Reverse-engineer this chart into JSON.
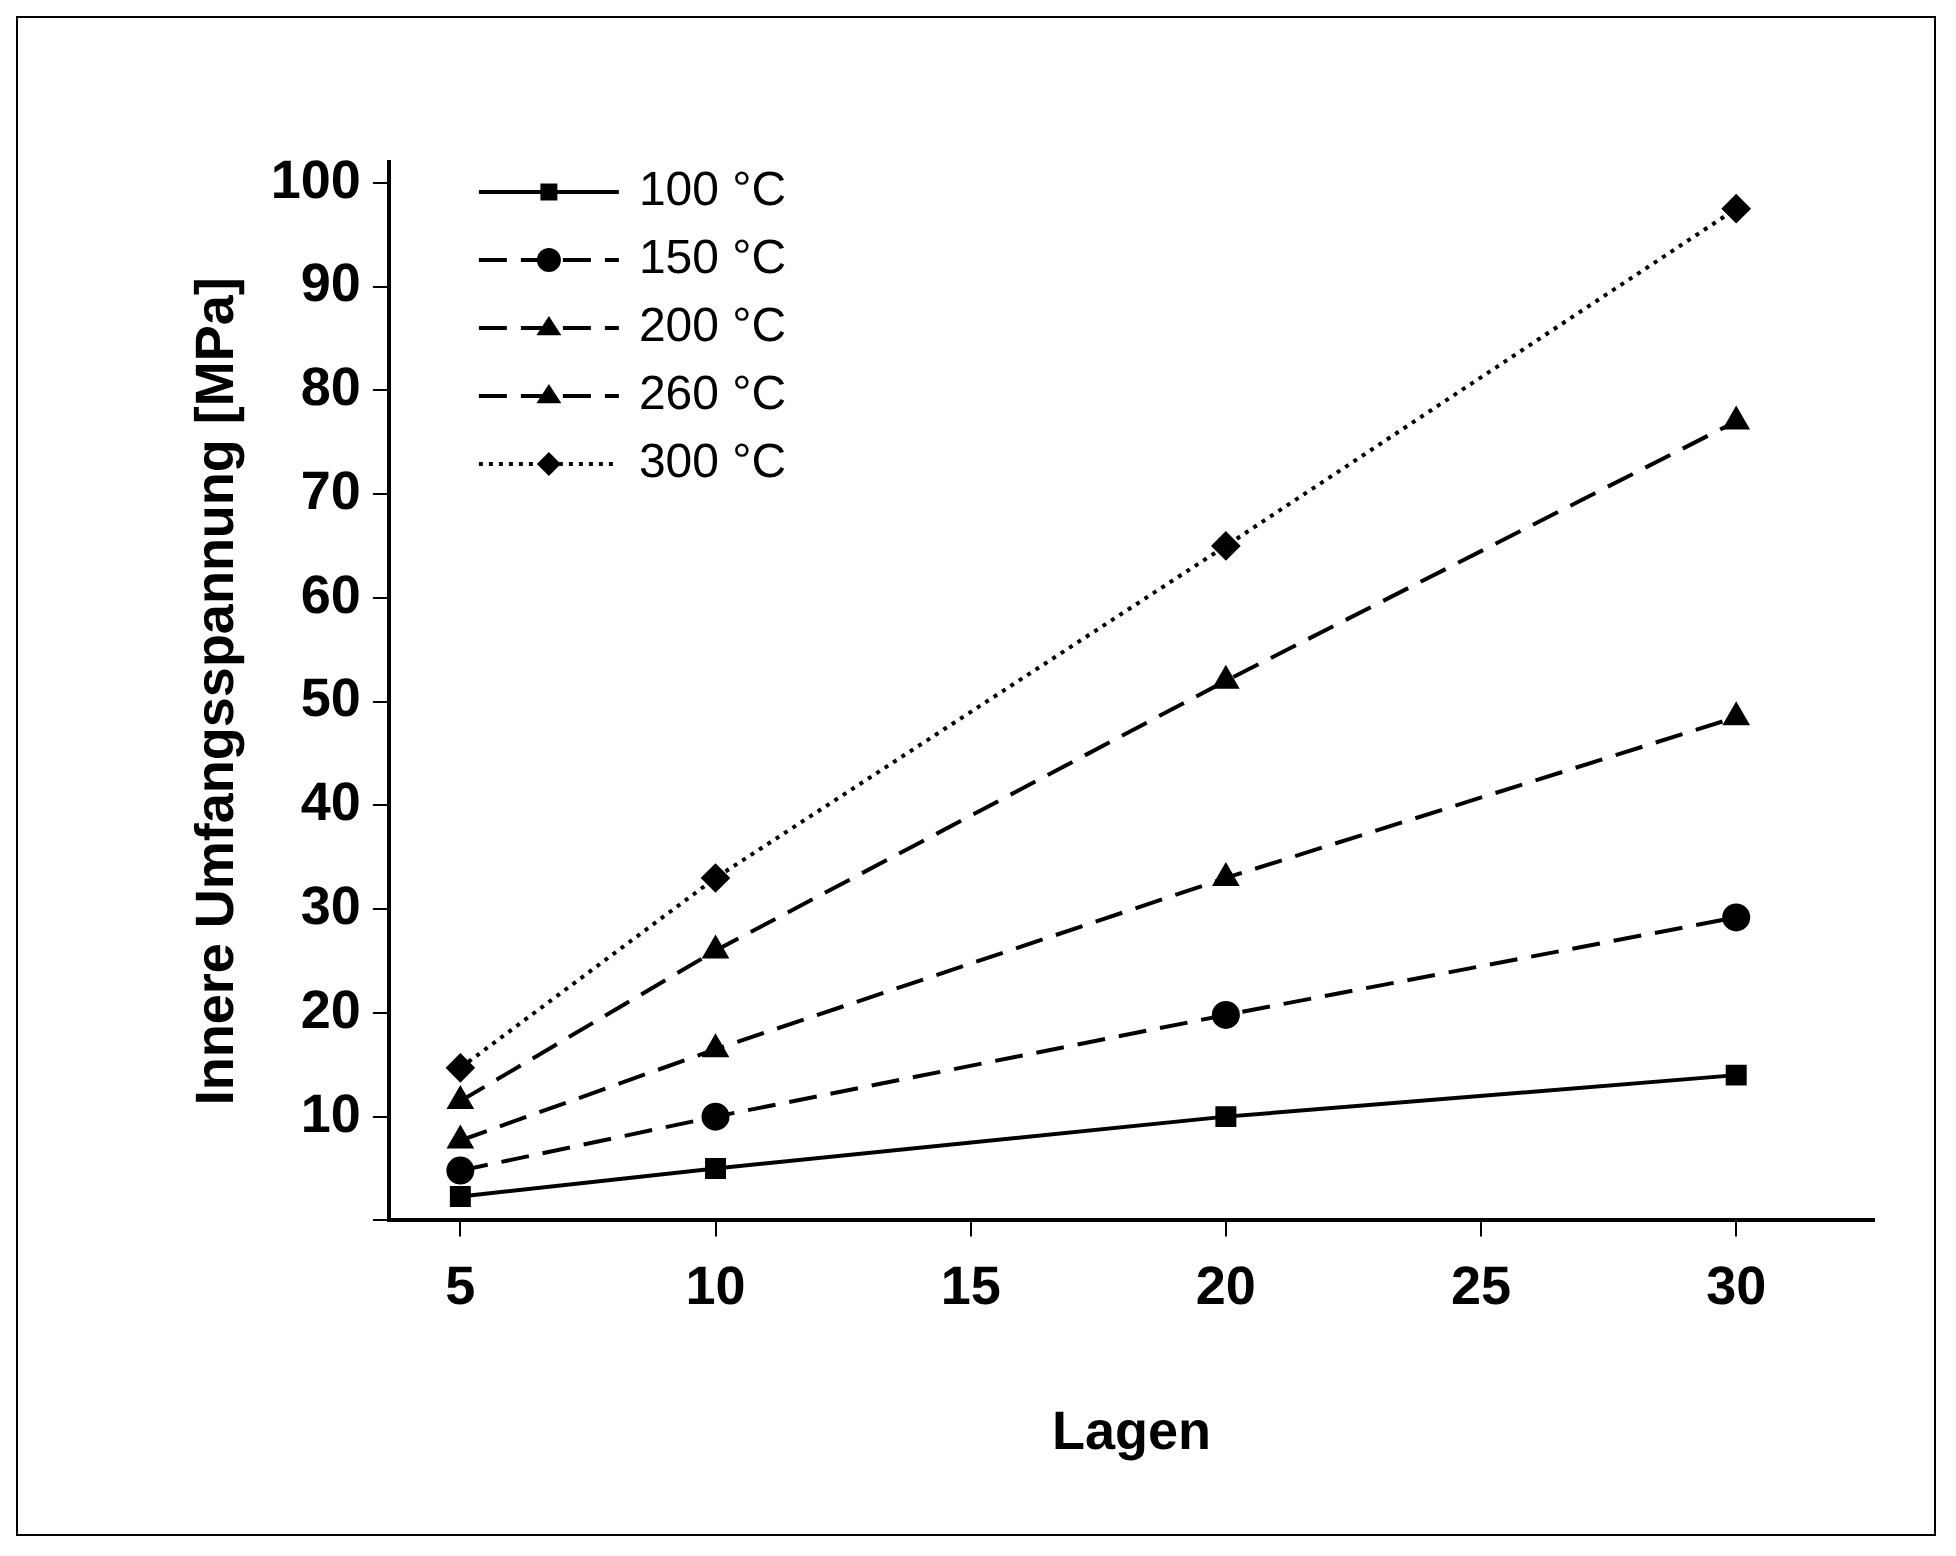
{
  "chart_data": {
    "type": "line",
    "xlabel": "Lagen",
    "ylabel": "Innere Umfangsspannung [MPa]",
    "x": [
      5,
      10,
      20,
      30
    ],
    "series": [
      {
        "name": "100 °C",
        "color": "#000000",
        "values": [
          2.3,
          5,
          10,
          14
        ],
        "marker": "square",
        "line_style": "solid"
      },
      {
        "name": "150 °C",
        "color": "#000000",
        "values": [
          4.8,
          10,
          19.8,
          29.2
        ],
        "marker": "circle",
        "line_style": "dashed"
      },
      {
        "name": "200 °C",
        "color": "#000000",
        "values": [
          7.7,
          16.5,
          33,
          48.5
        ],
        "marker": "triangle",
        "line_style": "dashed"
      },
      {
        "name": "260 °C",
        "color": "#000000",
        "values": [
          11.5,
          26,
          52,
          77
        ],
        "marker": "triangle",
        "line_style": "dashed"
      },
      {
        "name": "300 °C",
        "color": "#000000",
        "values": [
          14.7,
          33,
          65,
          97.5
        ],
        "marker": "diamond",
        "line_style": "dotted"
      }
    ],
    "xlim": [
      3.6,
      32.7
    ],
    "xticks": [
      5,
      10,
      15,
      20,
      25,
      30
    ],
    "ylim": [
      0,
      102
    ],
    "yticks": [
      {
        "value": 0,
        "label": null
      },
      10,
      20,
      30,
      40,
      50,
      60,
      70,
      80,
      90,
      100
    ],
    "legend": "top left"
  }
}
